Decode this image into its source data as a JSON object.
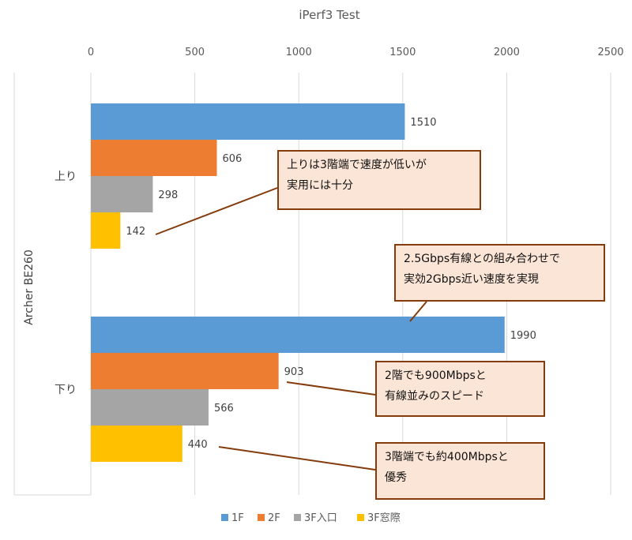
{
  "chart_data": {
    "type": "bar",
    "orientation": "horizontal",
    "title": "iPerf3 Test",
    "ylabel": "Archer BE260",
    "categories": [
      "上り",
      "下り"
    ],
    "xlim": [
      0,
      2500
    ],
    "xticks": [
      0,
      500,
      1000,
      1500,
      2000,
      2500
    ],
    "grid": true,
    "legend_position": "bottom",
    "series": [
      {
        "name": "1F",
        "color": "#5b9bd5",
        "values": [
          1510,
          1990
        ]
      },
      {
        "name": "2F",
        "color": "#ed7d31",
        "values": [
          606,
          903
        ]
      },
      {
        "name": "3F入口",
        "color": "#a5a5a5",
        "values": [
          298,
          566
        ]
      },
      {
        "name": "3F窓際",
        "color": "#ffc000",
        "values": [
          142,
          440
        ]
      }
    ],
    "annotations": [
      {
        "lines": [
          "上りは3階端で速度が低いが",
          "実用には十分"
        ],
        "target": {
          "category": "上り",
          "series": "3F窓際"
        }
      },
      {
        "lines": [
          "2.5Gbps有線との組み合わせで",
          "実効2Gbps近い速度を実現"
        ],
        "target": {
          "category": "下り",
          "series": "1F"
        }
      },
      {
        "lines": [
          "2階でも900Mbpsと",
          "有線並みのスピード"
        ],
        "target": {
          "category": "下り",
          "series": "2F"
        }
      },
      {
        "lines": [
          "3階端でも約400Mbpsと",
          "優秀"
        ],
        "target": {
          "category": "下り",
          "series": "3F窓際"
        }
      }
    ]
  }
}
